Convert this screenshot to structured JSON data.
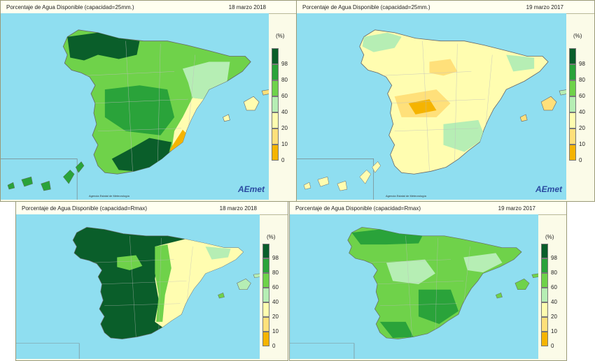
{
  "panels": [
    {
      "title": "Porcentaje de Agua Disponible (capacidad=25mm.)",
      "date": "18 marzo 2018",
      "footer": "Agencia Estatal de Meteorología",
      "logo": "AEmet"
    },
    {
      "title": "Porcentaje de Agua Disponible (capacidad=25mm.)",
      "date": "19 marzo 2017",
      "footer": "Agencia Estatal de Meteorología",
      "logo": "AEmet"
    },
    {
      "title": "Porcentaje de Agua Disponible (capacidad=Rmax)",
      "date": "18 marzo 2018"
    },
    {
      "title": "Porcentaje de Agua Disponible (capacidad=Rmax)",
      "date": "19 marzo 2017"
    }
  ],
  "legend": {
    "unit": "(%)",
    "labels": [
      "98",
      "80",
      "60",
      "40",
      "20",
      "10",
      "0"
    ],
    "colors": [
      "#0a5e2a",
      "#2aa33a",
      "#6fd24a",
      "#b6eeb4",
      "#fffdb0",
      "#ffe07a",
      "#f5b400"
    ]
  },
  "map_colors": {
    "sea": "#8fdef0",
    "boundaries": "#bdbdbd"
  }
}
